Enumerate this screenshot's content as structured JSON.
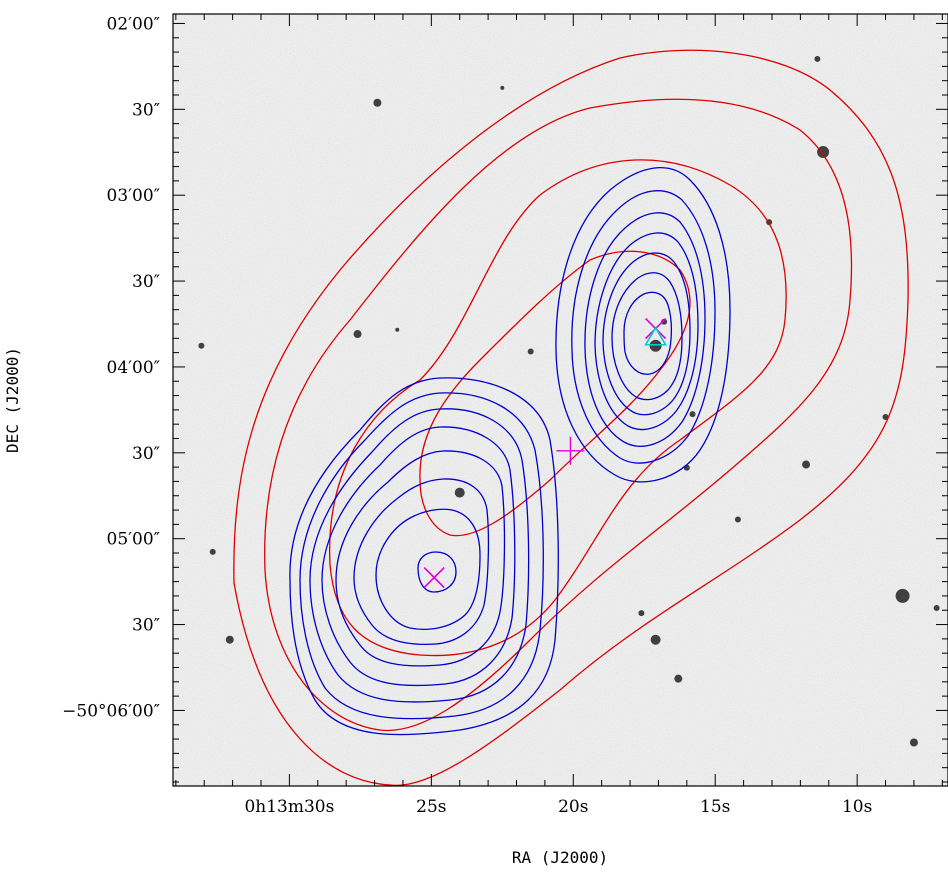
{
  "chart_data": {
    "type": "contour",
    "xlabel": "RA (J2000)",
    "ylabel": "DEC (J2000)",
    "x_ticks": [
      {
        "sec": 30,
        "label": "0h13m30s"
      },
      {
        "sec": 25,
        "label": "25s"
      },
      {
        "sec": 20,
        "label": "20s"
      },
      {
        "sec": 15,
        "label": "15s"
      },
      {
        "sec": 10,
        "label": "10s"
      }
    ],
    "y_ticks": [
      {
        "arcsec": 120,
        "label": "02′00″"
      },
      {
        "arcsec": 150,
        "label": "30″"
      },
      {
        "arcsec": 180,
        "label": "03′00″"
      },
      {
        "arcsec": 210,
        "label": "30″"
      },
      {
        "arcsec": 240,
        "label": "04′00″"
      },
      {
        "arcsec": 270,
        "label": "30″"
      },
      {
        "arcsec": 300,
        "label": "05′00″"
      },
      {
        "arcsec": 330,
        "label": "30″"
      },
      {
        "arcsec": 360,
        "label": "−50°06′00″"
      }
    ],
    "ra_range_s": [
      34.1,
      6.8
    ],
    "dec_range_arcsec": [
      116.7,
      386.4
    ],
    "colors": {
      "red_contours": "#dd0000",
      "blue_contours": "#0000cc",
      "markers": "#dd00dd",
      "triangle": "#00cccc"
    },
    "markers": [
      {
        "type": "x",
        "ra_s": 17.1,
        "dec_arcsec": 226.6
      },
      {
        "type": "x",
        "ra_s": 24.9,
        "dec_arcsec": 313.6
      },
      {
        "type": "plus",
        "ra_s": 20.1,
        "dec_arcsec": 269.3
      },
      {
        "type": "triangle",
        "ra_s": 17.1,
        "dec_arcsec": 229.8
      }
    ],
    "stars": [
      {
        "ra_s": 26.9,
        "dec_arcsec": 147.7,
        "r": 4
      },
      {
        "ra_s": 11.4,
        "dec_arcsec": 132.4,
        "r": 3
      },
      {
        "ra_s": 11.2,
        "dec_arcsec": 164.9,
        "r": 6
      },
      {
        "ra_s": 27.6,
        "dec_arcsec": 228.5,
        "r": 4
      },
      {
        "ra_s": 17.1,
        "dec_arcsec": 232.6,
        "r": 6
      },
      {
        "ra_s": 16.8,
        "dec_arcsec": 224.2,
        "r": 3
      },
      {
        "ra_s": 21.5,
        "dec_arcsec": 234.6,
        "r": 3
      },
      {
        "ra_s": 24.0,
        "dec_arcsec": 283.9,
        "r": 5
      },
      {
        "ra_s": 11.8,
        "dec_arcsec": 274.1,
        "r": 4
      },
      {
        "ra_s": 16.0,
        "dec_arcsec": 275.2,
        "r": 3
      },
      {
        "ra_s": 8.4,
        "dec_arcsec": 320.0,
        "r": 7
      },
      {
        "ra_s": 17.1,
        "dec_arcsec": 335.3,
        "r": 5
      },
      {
        "ra_s": 17.6,
        "dec_arcsec": 326.0,
        "r": 3
      },
      {
        "ra_s": 32.1,
        "dec_arcsec": 335.3,
        "r": 4
      },
      {
        "ra_s": 16.3,
        "dec_arcsec": 348.9,
        "r": 4
      },
      {
        "ra_s": 14.2,
        "dec_arcsec": 293.3,
        "r": 3
      },
      {
        "ra_s": 33.1,
        "dec_arcsec": 232.6,
        "r": 3
      },
      {
        "ra_s": 32.7,
        "dec_arcsec": 304.6,
        "r": 3
      },
      {
        "ra_s": 8.0,
        "dec_arcsec": 371.2,
        "r": 4
      },
      {
        "ra_s": 9.0,
        "dec_arcsec": 257.5,
        "r": 3
      },
      {
        "ra_s": 13.1,
        "dec_arcsec": 189.4,
        "r": 3
      },
      {
        "ra_s": 7.2,
        "dec_arcsec": 324.2,
        "r": 3
      },
      {
        "ra_s": 26.2,
        "dec_arcsec": 227.0,
        "r": 2
      },
      {
        "ra_s": 22.5,
        "dec_arcsec": 142.5,
        "r": 2
      },
      {
        "ra_s": 15.8,
        "dec_arcsec": 256.5,
        "r": 3
      }
    ]
  }
}
